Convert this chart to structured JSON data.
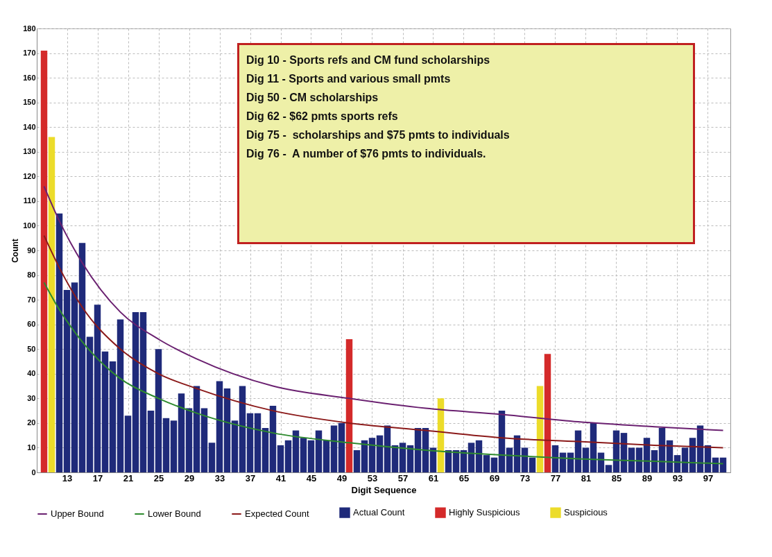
{
  "chart_data": {
    "type": "bar",
    "xlabel": "Digit Sequence",
    "ylabel": "Count",
    "x": [
      10,
      11,
      12,
      13,
      14,
      15,
      16,
      17,
      18,
      19,
      20,
      21,
      22,
      23,
      24,
      25,
      26,
      27,
      28,
      29,
      30,
      31,
      32,
      33,
      34,
      35,
      36,
      37,
      38,
      39,
      40,
      41,
      42,
      43,
      44,
      45,
      46,
      47,
      48,
      49,
      50,
      51,
      52,
      53,
      54,
      55,
      56,
      57,
      58,
      59,
      60,
      61,
      62,
      63,
      64,
      65,
      66,
      67,
      68,
      69,
      70,
      71,
      72,
      73,
      74,
      75,
      76,
      77,
      78,
      79,
      80,
      81,
      82,
      83,
      84,
      85,
      86,
      87,
      88,
      89,
      90,
      91,
      92,
      93,
      94,
      95,
      96,
      97,
      98,
      99
    ],
    "xlim": [
      9.5,
      99.5
    ],
    "xticks": [
      13,
      17,
      21,
      25,
      29,
      33,
      37,
      41,
      45,
      49,
      53,
      57,
      61,
      65,
      69,
      73,
      77,
      81,
      85,
      89,
      93,
      97
    ],
    "ylim": [
      0,
      180
    ],
    "yticks": [
      0,
      10,
      20,
      30,
      40,
      50,
      60,
      70,
      80,
      90,
      100,
      110,
      120,
      130,
      140,
      150,
      160,
      170,
      180
    ],
    "grid": true,
    "legend": "bottom",
    "series": [
      {
        "name": "Upper Bound",
        "type": "line",
        "color": "#6a2070",
        "x": [
          10,
          12,
          15,
          20,
          25,
          30,
          40,
          50,
          60,
          70,
          80,
          90,
          99
        ],
        "values": [
          116,
          102,
          85,
          65,
          54,
          46,
          35,
          30,
          26,
          23.5,
          20.5,
          18.5,
          17
        ]
      },
      {
        "name": "Lower Bound",
        "type": "line",
        "color": "#2e8b2e",
        "x": [
          10,
          12,
          15,
          20,
          25,
          30,
          40,
          50,
          60,
          70,
          80,
          90,
          99
        ],
        "values": [
          77,
          66,
          53,
          38,
          30,
          24,
          16,
          12,
          9,
          7,
          5.5,
          4.5,
          3.5
        ]
      },
      {
        "name": "Expected Count",
        "type": "line",
        "color": "#8b1a1a",
        "x": [
          10,
          12,
          15,
          20,
          25,
          30,
          40,
          50,
          60,
          70,
          80,
          90,
          99
        ],
        "values": [
          96,
          83,
          67,
          50,
          40,
          34,
          25,
          20,
          17,
          14,
          12.5,
          11,
          10
        ]
      },
      {
        "name": "Actual Count",
        "color": "#1f2a7a",
        "values": [
          null,
          null,
          105,
          74,
          77,
          93,
          55,
          68,
          49,
          45,
          62,
          23,
          65,
          65,
          25,
          50,
          22,
          21,
          32,
          26,
          35,
          26,
          12,
          37,
          34,
          21,
          35,
          24,
          24,
          18,
          27,
          11,
          13,
          17,
          14,
          13,
          17,
          13,
          19,
          20,
          null,
          9,
          13,
          14,
          15,
          19,
          11,
          12,
          11,
          18,
          18,
          10,
          null,
          9,
          9,
          9,
          12,
          13,
          7,
          6,
          25,
          10,
          15,
          10,
          6,
          null,
          null,
          11,
          8,
          8,
          17,
          10,
          20,
          8,
          3,
          17,
          16,
          10,
          10,
          14,
          9,
          18,
          13,
          7,
          10,
          14,
          19,
          11,
          6,
          6
        ]
      },
      {
        "name": "Highly Suspicious",
        "color": "#d42a2a",
        "values": [
          171,
          null,
          null,
          null,
          null,
          null,
          null,
          null,
          null,
          null,
          null,
          null,
          null,
          null,
          null,
          null,
          null,
          null,
          null,
          null,
          null,
          null,
          null,
          null,
          null,
          null,
          null,
          null,
          null,
          null,
          null,
          null,
          null,
          null,
          null,
          null,
          null,
          null,
          null,
          null,
          54,
          null,
          null,
          null,
          null,
          null,
          null,
          null,
          null,
          null,
          null,
          null,
          null,
          null,
          null,
          null,
          null,
          null,
          null,
          null,
          null,
          null,
          null,
          null,
          null,
          null,
          48,
          null,
          null,
          null,
          null,
          null,
          null,
          null,
          null,
          null,
          null,
          null,
          null,
          null,
          null,
          null,
          null,
          null,
          null,
          null,
          null,
          null,
          null,
          null
        ]
      },
      {
        "name": "Suspicious",
        "color": "#ecdc2a",
        "values": [
          null,
          136,
          null,
          null,
          null,
          null,
          null,
          null,
          null,
          null,
          null,
          null,
          null,
          null,
          null,
          null,
          null,
          null,
          null,
          null,
          null,
          null,
          null,
          null,
          null,
          null,
          null,
          null,
          null,
          null,
          null,
          null,
          null,
          null,
          null,
          null,
          null,
          null,
          null,
          null,
          null,
          null,
          null,
          null,
          null,
          null,
          null,
          null,
          null,
          null,
          null,
          null,
          30,
          null,
          null,
          null,
          null,
          null,
          null,
          null,
          null,
          null,
          null,
          null,
          null,
          35,
          null,
          null,
          null,
          null,
          null,
          null,
          null,
          null,
          null,
          null,
          null,
          null,
          null,
          null,
          null,
          null,
          null,
          null,
          null,
          null,
          null,
          null,
          null,
          null
        ]
      }
    ],
    "annotations": [
      "Dig 10 - Sports refs and CM fund scholarships",
      "Dig 11 - Sports and various small pmts",
      "Dig 50 - CM scholarships",
      "Dig 62 - $62 pmts sports refs",
      "Dig 75 -  scholarships and $75 pmts to individuals",
      "Dig 76 -  A number of $76 pmts to individuals."
    ]
  }
}
